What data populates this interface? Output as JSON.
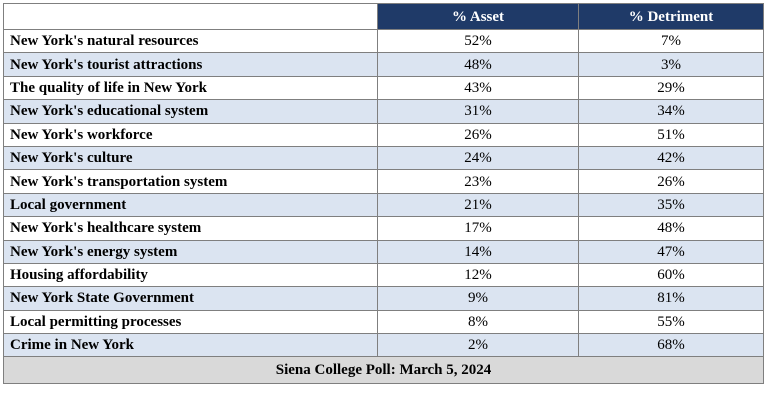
{
  "chart_data": {
    "type": "table",
    "columns": [
      "",
      "% Asset",
      "% Detriment"
    ],
    "rows": [
      {
        "label": "New York's natural resources",
        "asset": "52%",
        "detriment": "7%"
      },
      {
        "label": "New York's tourist attractions",
        "asset": "48%",
        "detriment": "3%"
      },
      {
        "label": "The quality of life in New York",
        "asset": "43%",
        "detriment": "29%"
      },
      {
        "label": "New York's educational system",
        "asset": "31%",
        "detriment": "34%"
      },
      {
        "label": "New York's workforce",
        "asset": "26%",
        "detriment": "51%"
      },
      {
        "label": "New York's culture",
        "asset": "24%",
        "detriment": "42%"
      },
      {
        "label": "New York's transportation system",
        "asset": "23%",
        "detriment": "26%"
      },
      {
        "label": "Local government",
        "asset": "21%",
        "detriment": "35%"
      },
      {
        "label": "New York's healthcare system",
        "asset": "17%",
        "detriment": "48%"
      },
      {
        "label": "New York's energy system",
        "asset": "14%",
        "detriment": "47%"
      },
      {
        "label": "Housing affordability",
        "asset": "12%",
        "detriment": "60%"
      },
      {
        "label": "New York State Government",
        "asset": "9%",
        "detriment": "81%"
      },
      {
        "label": "Local permitting processes",
        "asset": "8%",
        "detriment": "55%"
      },
      {
        "label": "Crime in New York",
        "asset": "2%",
        "detriment": "68%"
      }
    ],
    "footer": "Siena College Poll: March 5, 2024"
  },
  "colors": {
    "header_bg": "#1f3a68",
    "header_text": "#ffffff",
    "stripe_bg": "#dbe4f1",
    "footer_bg": "#d9d9d9"
  }
}
